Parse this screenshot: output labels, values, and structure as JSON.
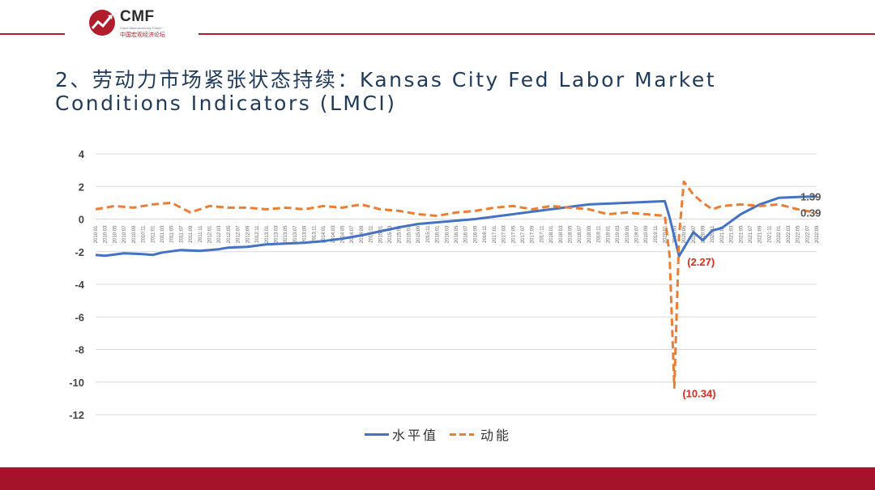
{
  "header": {
    "logo_text": "CMF",
    "logo_sub": "China Macroeconomy Forum",
    "logo_cn": "中国宏观经济论坛"
  },
  "title": "2、劳动力市场紧张状态持续：Kansas City Fed Labor Market Conditions Indicators (LMCI)",
  "colors": {
    "accent": "#b01d2b",
    "level": "#4472c4",
    "momentum": "#ed7d31",
    "annotation": "#e0281e"
  },
  "chart_data": {
    "type": "line",
    "title": "",
    "xlabel": "",
    "ylabel": "",
    "ylim": [
      -12,
      4
    ],
    "yticks": [
      4,
      2,
      0,
      -2,
      -4,
      -6,
      -8,
      -10,
      -12
    ],
    "grid": "horizontal",
    "legend_position": "bottom",
    "x_start": "2010-01",
    "x_end": "2022-09",
    "x_tick_labels": [
      "2010:01",
      "2010:03",
      "2010:05",
      "2010:07",
      "2010:09",
      "2010:11",
      "2011:01",
      "2011:03",
      "2011:05",
      "2011:07",
      "2011:09",
      "2011:11",
      "2012:01",
      "2012:03",
      "2012:05",
      "2012:07",
      "2012:09",
      "2012:11",
      "2013:01",
      "2013:03",
      "2013:05",
      "2013:07",
      "2013:09",
      "2013:11",
      "2014:01",
      "2014:03",
      "2014:05",
      "2014:07",
      "2014:09",
      "2014:11",
      "2015:01",
      "2015:03",
      "2015:05",
      "2015:07",
      "2015:09",
      "2015:11",
      "2016:01",
      "2016:03",
      "2016:05",
      "2016:07",
      "2016:09",
      "2016:11",
      "2017:01",
      "2017:03",
      "2017:05",
      "2017:07",
      "2017:09",
      "2017:11",
      "2018:01",
      "2018:03",
      "2018:05",
      "2018:07",
      "2018:09",
      "2018:11",
      "2019:01",
      "2019:03",
      "2019:05",
      "2019:07",
      "2019:09",
      "2019:11",
      "2020:01",
      "2020:03",
      "2020:05",
      "2020:07",
      "2020:09",
      "2020:11",
      "2021:01",
      "2021:03",
      "2021:05",
      "2021:07",
      "2021:09",
      "2021:11",
      "2022:01",
      "2022:03",
      "2022:05",
      "2022:07",
      "2022:09"
    ],
    "series": [
      {
        "name": "水平值",
        "style": "solid",
        "points": [
          [
            "2010:01",
            -2.2
          ],
          [
            "2010:03",
            -2.25
          ],
          [
            "2010:07",
            -2.1
          ],
          [
            "2010:11",
            -2.15
          ],
          [
            "2011:01",
            -2.2
          ],
          [
            "2011:03",
            -2.05
          ],
          [
            "2011:07",
            -1.9
          ],
          [
            "2011:11",
            -1.95
          ],
          [
            "2012:03",
            -1.85
          ],
          [
            "2012:05",
            -1.75
          ],
          [
            "2012:09",
            -1.7
          ],
          [
            "2013:01",
            -1.55
          ],
          [
            "2013:05",
            -1.5
          ],
          [
            "2013:09",
            -1.45
          ],
          [
            "2014:01",
            -1.35
          ],
          [
            "2014:05",
            -1.2
          ],
          [
            "2014:09",
            -1.0
          ],
          [
            "2015:01",
            -0.75
          ],
          [
            "2015:05",
            -0.5
          ],
          [
            "2015:09",
            -0.3
          ],
          [
            "2016:01",
            -0.2
          ],
          [
            "2016:05",
            -0.1
          ],
          [
            "2016:09",
            0.0
          ],
          [
            "2017:01",
            0.15
          ],
          [
            "2017:05",
            0.3
          ],
          [
            "2017:09",
            0.45
          ],
          [
            "2018:01",
            0.6
          ],
          [
            "2018:05",
            0.75
          ],
          [
            "2018:09",
            0.9
          ],
          [
            "2019:01",
            0.95
          ],
          [
            "2019:05",
            1.0
          ],
          [
            "2019:09",
            1.05
          ],
          [
            "2020:01",
            1.1
          ],
          [
            "2020:02",
            0.1
          ],
          [
            "2020:04",
            -2.27
          ],
          [
            "2020:07",
            -0.8
          ],
          [
            "2020:09",
            -1.3
          ],
          [
            "2020:11",
            -0.7
          ],
          [
            "2021:01",
            -0.55
          ],
          [
            "2021:05",
            0.3
          ],
          [
            "2021:09",
            0.9
          ],
          [
            "2022:01",
            1.3
          ],
          [
            "2022:05",
            1.35
          ],
          [
            "2022:09",
            1.39
          ]
        ]
      },
      {
        "name": "动能",
        "style": "dashed",
        "points": [
          [
            "2010:01",
            0.6
          ],
          [
            "2010:05",
            0.8
          ],
          [
            "2010:09",
            0.7
          ],
          [
            "2011:01",
            0.9
          ],
          [
            "2011:05",
            1.0
          ],
          [
            "2011:09",
            0.4
          ],
          [
            "2012:01",
            0.8
          ],
          [
            "2012:05",
            0.7
          ],
          [
            "2012:09",
            0.7
          ],
          [
            "2013:01",
            0.6
          ],
          [
            "2013:05",
            0.7
          ],
          [
            "2013:09",
            0.6
          ],
          [
            "2014:01",
            0.8
          ],
          [
            "2014:05",
            0.7
          ],
          [
            "2014:09",
            0.9
          ],
          [
            "2015:01",
            0.6
          ],
          [
            "2015:05",
            0.5
          ],
          [
            "2015:09",
            0.3
          ],
          [
            "2016:01",
            0.2
          ],
          [
            "2016:05",
            0.4
          ],
          [
            "2016:09",
            0.5
          ],
          [
            "2017:01",
            0.7
          ],
          [
            "2017:05",
            0.8
          ],
          [
            "2017:09",
            0.6
          ],
          [
            "2018:01",
            0.8
          ],
          [
            "2018:05",
            0.7
          ],
          [
            "2018:09",
            0.6
          ],
          [
            "2019:01",
            0.3
          ],
          [
            "2019:05",
            0.4
          ],
          [
            "2019:09",
            0.3
          ],
          [
            "2020:01",
            0.2
          ],
          [
            "2020:02",
            -2.27
          ],
          [
            "2020:03",
            -10.34
          ],
          [
            "2020:04",
            -1.0
          ],
          [
            "2020:05",
            2.3
          ],
          [
            "2020:07",
            1.5
          ],
          [
            "2020:09",
            1.0
          ],
          [
            "2020:11",
            0.6
          ],
          [
            "2021:01",
            0.8
          ],
          [
            "2021:05",
            0.9
          ],
          [
            "2021:09",
            0.8
          ],
          [
            "2022:01",
            0.9
          ],
          [
            "2022:05",
            0.6
          ],
          [
            "2022:09",
            0.39
          ]
        ]
      }
    ],
    "annotations": [
      {
        "text": "(2.27)",
        "x": "2020:04",
        "y": -2.27,
        "series": "水平值"
      },
      {
        "text": "(10.34)",
        "x": "2020:03",
        "y": -10.34,
        "series": "动能"
      },
      {
        "text": "1.39",
        "x": "2022:09",
        "y": 1.39,
        "series": "水平值"
      },
      {
        "text": "0.39",
        "x": "2022:09",
        "y": 0.39,
        "series": "动能"
      }
    ]
  }
}
